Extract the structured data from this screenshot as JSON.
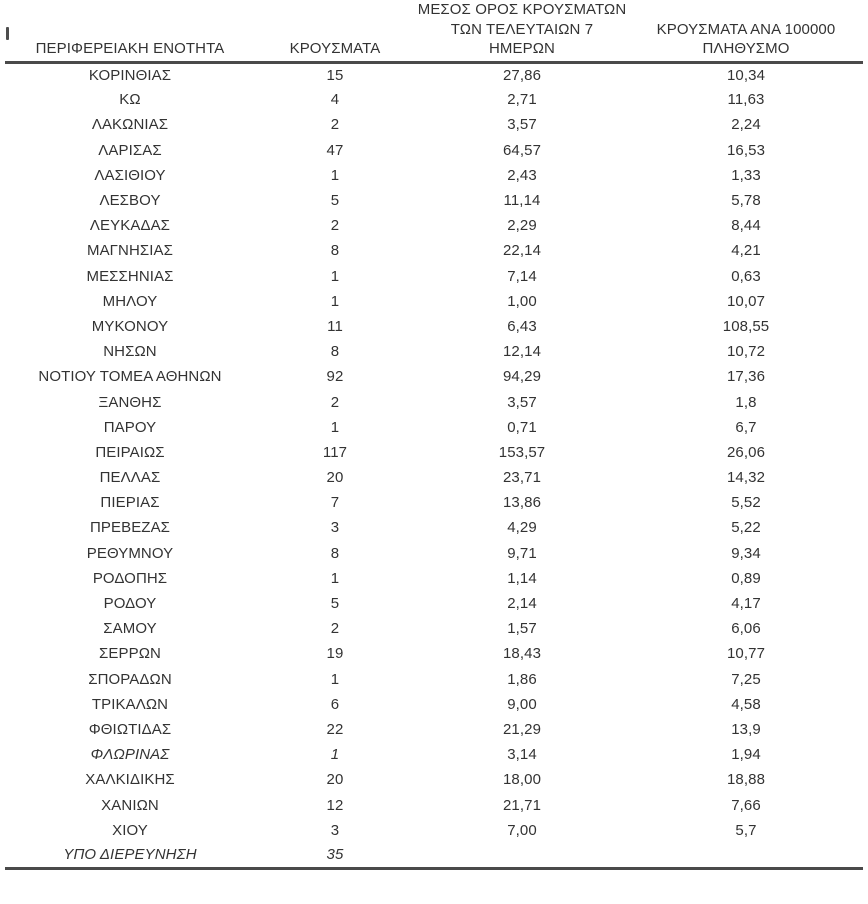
{
  "colors": {
    "text": "#333333",
    "rule": "#4a4a4a",
    "background": "#ffffff"
  },
  "table": {
    "header": {
      "region": "ΠΕΡΙΦΕΡΕΙΑΚΗ ΕΝΟΤΗΤΑ",
      "cases": "ΚΡΟΥΣΜΑΤΑ",
      "avg7_lines": [
        "ΜΕΣΟΣ ΟΡΟΣ ΚΡΟΥΣΜΑΤΩΝ",
        "ΤΩΝ ΤΕΛΕΥΤΑΙΩΝ 7",
        "ΗΜΕΡΩΝ"
      ],
      "per100k_lines": [
        "ΚΡΟΥΣΜΑΤΑ ΑΝΑ 100000",
        "ΠΛΗΘΥΣΜΟ"
      ]
    },
    "rows": [
      {
        "region": "ΚΟΡΙΝΘΙΑΣ",
        "cases": "15",
        "avg7": "27,86",
        "per100k": "10,34",
        "italic": false
      },
      {
        "region": "ΚΩ",
        "cases": "4",
        "avg7": "2,71",
        "per100k": "11,63",
        "italic": false
      },
      {
        "region": "ΛΑΚΩΝΙΑΣ",
        "cases": "2",
        "avg7": "3,57",
        "per100k": "2,24",
        "italic": false
      },
      {
        "region": "ΛΑΡΙΣΑΣ",
        "cases": "47",
        "avg7": "64,57",
        "per100k": "16,53",
        "italic": false
      },
      {
        "region": "ΛΑΣΙΘΙΟΥ",
        "cases": "1",
        "avg7": "2,43",
        "per100k": "1,33",
        "italic": false
      },
      {
        "region": "ΛΕΣΒΟΥ",
        "cases": "5",
        "avg7": "11,14",
        "per100k": "5,78",
        "italic": false
      },
      {
        "region": "ΛΕΥΚΑΔΑΣ",
        "cases": "2",
        "avg7": "2,29",
        "per100k": "8,44",
        "italic": false
      },
      {
        "region": "ΜΑΓΝΗΣΙΑΣ",
        "cases": "8",
        "avg7": "22,14",
        "per100k": "4,21",
        "italic": false
      },
      {
        "region": "ΜΕΣΣΗΝΙΑΣ",
        "cases": "1",
        "avg7": "7,14",
        "per100k": "0,63",
        "italic": false
      },
      {
        "region": "ΜΗΛΟΥ",
        "cases": "1",
        "avg7": "1,00",
        "per100k": "10,07",
        "italic": false
      },
      {
        "region": "ΜΥΚΟΝΟΥ",
        "cases": "11",
        "avg7": "6,43",
        "per100k": "108,55",
        "italic": false
      },
      {
        "region": "ΝΗΣΩΝ",
        "cases": "8",
        "avg7": "12,14",
        "per100k": "10,72",
        "italic": false
      },
      {
        "region": "ΝΟΤΙΟΥ ΤΟΜΕΑ ΑΘΗΝΩΝ",
        "cases": "92",
        "avg7": "94,29",
        "per100k": "17,36",
        "italic": false
      },
      {
        "region": "ΞΑΝΘΗΣ",
        "cases": "2",
        "avg7": "3,57",
        "per100k": "1,8",
        "italic": false
      },
      {
        "region": "ΠΑΡΟΥ",
        "cases": "1",
        "avg7": "0,71",
        "per100k": "6,7",
        "italic": false
      },
      {
        "region": "ΠΕΙΡΑΙΩΣ",
        "cases": "117",
        "avg7": "153,57",
        "per100k": "26,06",
        "italic": false
      },
      {
        "region": "ΠΕΛΛΑΣ",
        "cases": "20",
        "avg7": "23,71",
        "per100k": "14,32",
        "italic": false
      },
      {
        "region": "ΠΙΕΡΙΑΣ",
        "cases": "7",
        "avg7": "13,86",
        "per100k": "5,52",
        "italic": false
      },
      {
        "region": "ΠΡΕΒΕΖΑΣ",
        "cases": "3",
        "avg7": "4,29",
        "per100k": "5,22",
        "italic": false
      },
      {
        "region": "ΡΕΘΥΜΝΟΥ",
        "cases": "8",
        "avg7": "9,71",
        "per100k": "9,34",
        "italic": false
      },
      {
        "region": "ΡΟΔΟΠΗΣ",
        "cases": "1",
        "avg7": "1,14",
        "per100k": "0,89",
        "italic": false
      },
      {
        "region": "ΡΟΔΟΥ",
        "cases": "5",
        "avg7": "2,14",
        "per100k": "4,17",
        "italic": false
      },
      {
        "region": "ΣΑΜΟΥ",
        "cases": "2",
        "avg7": "1,57",
        "per100k": "6,06",
        "italic": false
      },
      {
        "region": "ΣΕΡΡΩΝ",
        "cases": "19",
        "avg7": "18,43",
        "per100k": "10,77",
        "italic": false
      },
      {
        "region": "ΣΠΟΡΑΔΩΝ",
        "cases": "1",
        "avg7": "1,86",
        "per100k": "7,25",
        "italic": false
      },
      {
        "region": "ΤΡΙΚΑΛΩΝ",
        "cases": "6",
        "avg7": "9,00",
        "per100k": "4,58",
        "italic": false
      },
      {
        "region": "ΦΘΙΩΤΙΔΑΣ",
        "cases": "22",
        "avg7": "21,29",
        "per100k": "13,9",
        "italic": false
      },
      {
        "region": "ΦΛΩΡΙΝΑΣ",
        "cases": "1",
        "avg7": "3,14",
        "per100k": "1,94",
        "italic": true
      },
      {
        "region": "ΧΑΛΚΙΔΙΚΗΣ",
        "cases": "20",
        "avg7": "18,00",
        "per100k": "18,88",
        "italic": false
      },
      {
        "region": "ΧΑΝΙΩΝ",
        "cases": "12",
        "avg7": "21,71",
        "per100k": "7,66",
        "italic": false
      },
      {
        "region": "ΧΙΟΥ",
        "cases": "3",
        "avg7": "7,00",
        "per100k": "5,7",
        "italic": false
      },
      {
        "region": "ΥΠΟ ΔΙΕΡΕΥΝΗΣΗ",
        "cases": "35",
        "avg7": "",
        "per100k": "",
        "italic": true
      }
    ]
  }
}
